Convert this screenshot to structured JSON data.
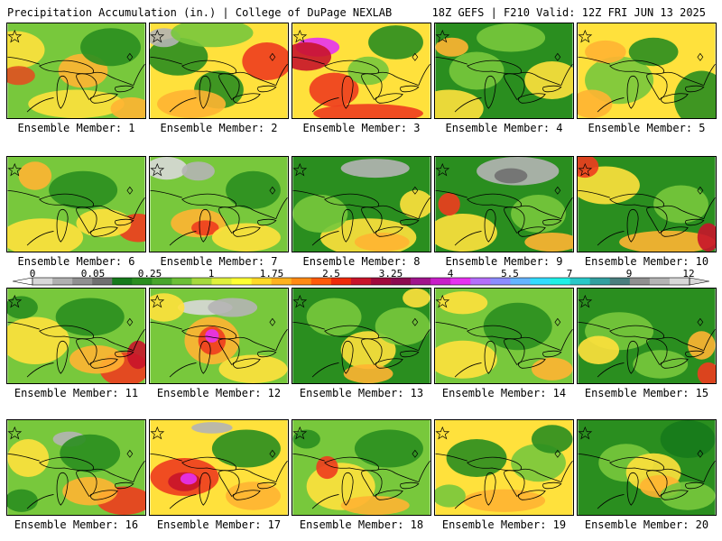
{
  "header": {
    "left": "Precipitation Accumulation (in.) | College of DuPage NEXLAB",
    "right": "18Z GEFS | F210 Valid: 12Z FRI JUN 13 2025"
  },
  "colorbar": {
    "labels": [
      "0",
      "0.05",
      "0.25",
      "1",
      "1.75",
      "2.5",
      "3.25",
      "4",
      "5.5",
      "7",
      "9",
      "12"
    ],
    "colors": [
      "#d8d8d8",
      "#b0b0b0",
      "#909090",
      "#707070",
      "#167a1b",
      "#2a8e1f",
      "#48a52c",
      "#6cbf37",
      "#a6d93d",
      "#e0f03c",
      "#ffff32",
      "#ffd928",
      "#ffb21e",
      "#ff8a14",
      "#ff5a0a",
      "#ee2a0a",
      "#c8142a",
      "#a00a3c",
      "#8c0a50",
      "#a0148c",
      "#c81ec8",
      "#e632f0",
      "#b46efa",
      "#8c8cff",
      "#64b4ff",
      "#32dcff",
      "#1ef0e6",
      "#28c8c8",
      "#32a0a0",
      "#4a7e7e",
      "#909090",
      "#b4b4b4",
      "#d8d8d8"
    ]
  },
  "panels": [
    {
      "member": "Ensemble Member: 1",
      "base": "#78c83c",
      "blobs": [
        [
          "#ffe13c",
          0.05,
          0.28,
          0.22,
          0.2
        ],
        [
          "#ffb432",
          0.55,
          0.5,
          0.18,
          0.18
        ],
        [
          "#e05020",
          0.08,
          0.55,
          0.12,
          0.1
        ],
        [
          "#ffe13c",
          0.5,
          0.85,
          0.35,
          0.15
        ],
        [
          "#ffb432",
          0.9,
          0.9,
          0.15,
          0.12
        ],
        [
          "#2a8e1f",
          0.75,
          0.25,
          0.22,
          0.2
        ]
      ]
    },
    {
      "member": "Ensemble Member: 2",
      "base": "#ffe13c",
      "blobs": [
        [
          "#2a8e1f",
          0.2,
          0.35,
          0.22,
          0.2
        ],
        [
          "#2a8e1f",
          0.5,
          0.7,
          0.18,
          0.2
        ],
        [
          "#b4b4b4",
          0.1,
          0.15,
          0.12,
          0.1
        ],
        [
          "#ee3c1e",
          0.85,
          0.4,
          0.18,
          0.2
        ],
        [
          "#ffb432",
          0.3,
          0.85,
          0.25,
          0.15
        ],
        [
          "#78c83c",
          0.45,
          0.1,
          0.3,
          0.15
        ]
      ]
    },
    {
      "member": "Ensemble Member: 3",
      "base": "#ffe13c",
      "blobs": [
        [
          "#e632f0",
          0.18,
          0.25,
          0.16,
          0.1
        ],
        [
          "#c8142a",
          0.1,
          0.35,
          0.18,
          0.15
        ],
        [
          "#ee3c1e",
          0.3,
          0.7,
          0.18,
          0.18
        ],
        [
          "#2a8e1f",
          0.75,
          0.2,
          0.2,
          0.18
        ],
        [
          "#ee3c1e",
          0.55,
          0.95,
          0.4,
          0.1
        ],
        [
          "#78c83c",
          0.55,
          0.5,
          0.15,
          0.15
        ]
      ]
    },
    {
      "member": "Ensemble Member: 4",
      "base": "#2a8e1f",
      "blobs": [
        [
          "#ffe13c",
          0.1,
          0.9,
          0.25,
          0.2
        ],
        [
          "#78c83c",
          0.3,
          0.5,
          0.2,
          0.2
        ],
        [
          "#ffe13c",
          0.85,
          0.6,
          0.2,
          0.2
        ],
        [
          "#ffb432",
          0.12,
          0.25,
          0.12,
          0.1
        ],
        [
          "#78c83c",
          0.55,
          0.15,
          0.25,
          0.15
        ]
      ]
    },
    {
      "member": "Ensemble Member: 5",
      "base": "#ffe13c",
      "blobs": [
        [
          "#78c83c",
          0.3,
          0.6,
          0.25,
          0.25
        ],
        [
          "#2a8e1f",
          0.55,
          0.3,
          0.18,
          0.15
        ],
        [
          "#ffb432",
          0.2,
          0.3,
          0.15,
          0.12
        ],
        [
          "#2a8e1f",
          0.9,
          0.8,
          0.2,
          0.3
        ],
        [
          "#ffb432",
          0.1,
          0.85,
          0.15,
          0.15
        ]
      ]
    },
    {
      "member": "Ensemble Member: 6",
      "base": "#78c83c",
      "blobs": [
        [
          "#ffe13c",
          0.25,
          0.85,
          0.3,
          0.2
        ],
        [
          "#ee3c1e",
          0.95,
          0.75,
          0.15,
          0.15
        ],
        [
          "#2a8e1f",
          0.55,
          0.35,
          0.25,
          0.2
        ],
        [
          "#ffb432",
          0.2,
          0.2,
          0.12,
          0.15
        ],
        [
          "#ffe13c",
          0.7,
          0.7,
          0.2,
          0.15
        ]
      ]
    },
    {
      "member": "Ensemble Member: 7",
      "base": "#78c83c",
      "blobs": [
        [
          "#d8d8d8",
          0.12,
          0.12,
          0.15,
          0.12
        ],
        [
          "#b4b4b4",
          0.35,
          0.15,
          0.12,
          0.1
        ],
        [
          "#ffb432",
          0.35,
          0.7,
          0.2,
          0.15
        ],
        [
          "#ee3c1e",
          0.4,
          0.75,
          0.1,
          0.08
        ],
        [
          "#ffe13c",
          0.7,
          0.85,
          0.25,
          0.15
        ],
        [
          "#2a8e1f",
          0.75,
          0.35,
          0.2,
          0.2
        ]
      ]
    },
    {
      "member": "Ensemble Member: 8",
      "base": "#2a8e1f",
      "blobs": [
        [
          "#b4b4b4",
          0.6,
          0.12,
          0.25,
          0.1
        ],
        [
          "#ffe13c",
          0.55,
          0.85,
          0.35,
          0.2
        ],
        [
          "#ffb432",
          0.65,
          0.9,
          0.2,
          0.1
        ],
        [
          "#78c83c",
          0.2,
          0.6,
          0.2,
          0.2
        ],
        [
          "#ffe13c",
          0.9,
          0.5,
          0.12,
          0.15
        ]
      ]
    },
    {
      "member": "Ensemble Member: 9",
      "base": "#2a8e1f",
      "blobs": [
        [
          "#b4b4b4",
          0.6,
          0.15,
          0.3,
          0.15
        ],
        [
          "#707070",
          0.55,
          0.2,
          0.12,
          0.08
        ],
        [
          "#ffe13c",
          0.2,
          0.8,
          0.25,
          0.2
        ],
        [
          "#ee3c1e",
          0.1,
          0.5,
          0.08,
          0.12
        ],
        [
          "#78c83c",
          0.75,
          0.6,
          0.2,
          0.2
        ],
        [
          "#ffb432",
          0.85,
          0.9,
          0.2,
          0.1
        ]
      ]
    },
    {
      "member": "Ensemble Member: 10",
      "base": "#2a8e1f",
      "blobs": [
        [
          "#ffe13c",
          0.2,
          0.3,
          0.25,
          0.2
        ],
        [
          "#ee3c1e",
          0.05,
          0.1,
          0.1,
          0.12
        ],
        [
          "#ffb432",
          0.65,
          0.9,
          0.35,
          0.12
        ],
        [
          "#78c83c",
          0.75,
          0.5,
          0.2,
          0.2
        ],
        [
          "#c8142a",
          0.95,
          0.85,
          0.08,
          0.15
        ]
      ]
    },
    {
      "member": "Ensemble Member: 11",
      "base": "#78c83c",
      "blobs": [
        [
          "#ffe13c",
          0.2,
          0.55,
          0.25,
          0.25
        ],
        [
          "#2a8e1f",
          0.6,
          0.3,
          0.25,
          0.2
        ],
        [
          "#ee3c1e",
          0.85,
          0.85,
          0.18,
          0.18
        ],
        [
          "#c8142a",
          0.95,
          0.7,
          0.08,
          0.15
        ],
        [
          "#ffb432",
          0.65,
          0.75,
          0.2,
          0.15
        ],
        [
          "#2a8e1f",
          0.1,
          0.2,
          0.12,
          0.12
        ]
      ]
    },
    {
      "member": "Ensemble Member: 12",
      "base": "#78c83c",
      "blobs": [
        [
          "#d8d8d8",
          0.4,
          0.2,
          0.2,
          0.08
        ],
        [
          "#b4b4b4",
          0.6,
          0.2,
          0.18,
          0.1
        ],
        [
          "#ffb432",
          0.45,
          0.55,
          0.2,
          0.25
        ],
        [
          "#ee3c1e",
          0.45,
          0.55,
          0.1,
          0.15
        ],
        [
          "#e632f0",
          0.45,
          0.5,
          0.05,
          0.07
        ],
        [
          "#ffe13c",
          0.75,
          0.85,
          0.25,
          0.15
        ],
        [
          "#ffe13c",
          0.1,
          0.2,
          0.15,
          0.15
        ]
      ]
    },
    {
      "member": "Ensemble Member: 13",
      "base": "#2a8e1f",
      "blobs": [
        [
          "#78c83c",
          0.3,
          0.3,
          0.2,
          0.2
        ],
        [
          "#ffe13c",
          0.55,
          0.65,
          0.2,
          0.2
        ],
        [
          "#78c83c",
          0.8,
          0.4,
          0.2,
          0.2
        ],
        [
          "#ffe13c",
          0.9,
          0.1,
          0.1,
          0.1
        ],
        [
          "#ffb432",
          0.55,
          0.9,
          0.18,
          0.1
        ]
      ]
    },
    {
      "member": "Ensemble Member: 14",
      "base": "#78c83c",
      "blobs": [
        [
          "#2a8e1f",
          0.6,
          0.4,
          0.25,
          0.25
        ],
        [
          "#ffe13c",
          0.2,
          0.75,
          0.25,
          0.2
        ],
        [
          "#ffb432",
          0.85,
          0.85,
          0.15,
          0.12
        ],
        [
          "#ffe13c",
          0.2,
          0.15,
          0.18,
          0.12
        ],
        [
          "#78c83c",
          0.9,
          0.6,
          0.1,
          0.1
        ]
      ]
    },
    {
      "member": "Ensemble Member: 15",
      "base": "#2a8e1f",
      "blobs": [
        [
          "#78c83c",
          0.3,
          0.45,
          0.25,
          0.2
        ],
        [
          "#ffe13c",
          0.15,
          0.65,
          0.15,
          0.15
        ],
        [
          "#ffb432",
          0.9,
          0.6,
          0.1,
          0.15
        ],
        [
          "#ee3c1e",
          0.95,
          0.9,
          0.08,
          0.12
        ],
        [
          "#78c83c",
          0.6,
          0.8,
          0.2,
          0.15
        ]
      ]
    },
    {
      "member": "Ensemble Member: 16",
      "base": "#78c83c",
      "blobs": [
        [
          "#b4b4b4",
          0.45,
          0.2,
          0.12,
          0.08
        ],
        [
          "#2a8e1f",
          0.6,
          0.35,
          0.22,
          0.2
        ],
        [
          "#ffe13c",
          0.15,
          0.4,
          0.15,
          0.2
        ],
        [
          "#ee3c1e",
          0.85,
          0.85,
          0.2,
          0.15
        ],
        [
          "#ffb432",
          0.6,
          0.75,
          0.2,
          0.15
        ],
        [
          "#2a8e1f",
          0.1,
          0.85,
          0.12,
          0.12
        ]
      ]
    },
    {
      "member": "Ensemble Member: 17",
      "base": "#ffe13c",
      "blobs": [
        [
          "#b4b4b4",
          0.45,
          0.08,
          0.15,
          0.06
        ],
        [
          "#ee3c1e",
          0.25,
          0.6,
          0.25,
          0.2
        ],
        [
          "#c8142a",
          0.25,
          0.65,
          0.12,
          0.1
        ],
        [
          "#e632f0",
          0.28,
          0.62,
          0.06,
          0.06
        ],
        [
          "#2a8e1f",
          0.7,
          0.3,
          0.25,
          0.2
        ],
        [
          "#ffb432",
          0.75,
          0.8,
          0.2,
          0.15
        ]
      ]
    },
    {
      "member": "Ensemble Member: 18",
      "base": "#78c83c",
      "blobs": [
        [
          "#ffe13c",
          0.35,
          0.7,
          0.25,
          0.25
        ],
        [
          "#ee3c1e",
          0.25,
          0.5,
          0.08,
          0.12
        ],
        [
          "#2a8e1f",
          0.7,
          0.3,
          0.25,
          0.2
        ],
        [
          "#ffb432",
          0.6,
          0.9,
          0.25,
          0.1
        ],
        [
          "#2a8e1f",
          0.1,
          0.2,
          0.1,
          0.1
        ]
      ]
    },
    {
      "member": "Ensemble Member: 19",
      "base": "#ffe13c",
      "blobs": [
        [
          "#2a8e1f",
          0.3,
          0.4,
          0.22,
          0.2
        ],
        [
          "#78c83c",
          0.75,
          0.45,
          0.2,
          0.2
        ],
        [
          "#2a8e1f",
          0.85,
          0.2,
          0.15,
          0.15
        ],
        [
          "#ffb432",
          0.5,
          0.85,
          0.3,
          0.12
        ],
        [
          "#78c83c",
          0.1,
          0.8,
          0.12,
          0.12
        ]
      ]
    },
    {
      "member": "Ensemble Member: 20",
      "base": "#2a8e1f",
      "blobs": [
        [
          "#78c83c",
          0.35,
          0.45,
          0.2,
          0.2
        ],
        [
          "#ffe13c",
          0.55,
          0.55,
          0.2,
          0.2
        ],
        [
          "#ffb432",
          0.6,
          0.7,
          0.15,
          0.12
        ],
        [
          "#78c83c",
          0.8,
          0.8,
          0.2,
          0.15
        ],
        [
          "#167a1b",
          0.8,
          0.2,
          0.2,
          0.2
        ]
      ]
    }
  ]
}
